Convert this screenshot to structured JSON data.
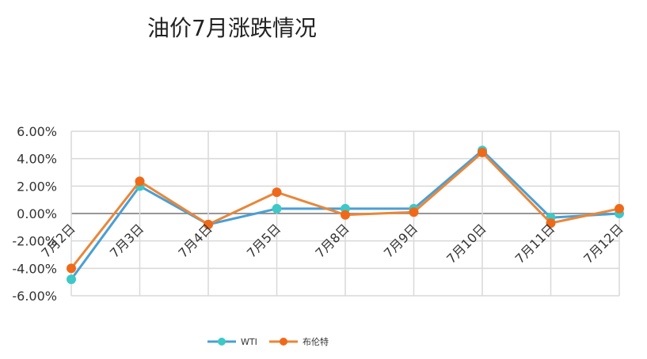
{
  "chart_data": {
    "type": "line",
    "title": "油价7月涨跌情况",
    "xlabel": "",
    "ylabel": "",
    "categories": [
      "7月2日",
      "7月3日",
      "7月4日",
      "7月5日",
      "7月8日",
      "7月9日",
      "7月10日",
      "7月11日",
      "7月12日"
    ],
    "series": [
      {
        "name": "WTI",
        "color": "#4a9fd4",
        "marker_color": "#3ec8c8",
        "values": [
          -4.8,
          2.0,
          -0.8,
          0.35,
          0.35,
          0.35,
          4.6,
          -0.3,
          0.0
        ]
      },
      {
        "name": "布伦特",
        "color": "#e8873a",
        "marker_color": "#ee6a1a",
        "values": [
          -4.0,
          2.35,
          -0.8,
          1.55,
          -0.1,
          0.1,
          4.45,
          -0.7,
          0.35
        ]
      }
    ],
    "ylim": [
      -6,
      6
    ],
    "yticks": [
      6,
      4,
      2,
      0,
      -2,
      -4,
      -6
    ],
    "ytick_labels": [
      "6.00%",
      "4.00%",
      "2.00%",
      "0.00%",
      "-2.00%",
      "-4.00%",
      "-6.00%"
    ],
    "grid": true,
    "legend_position": "bottom"
  }
}
